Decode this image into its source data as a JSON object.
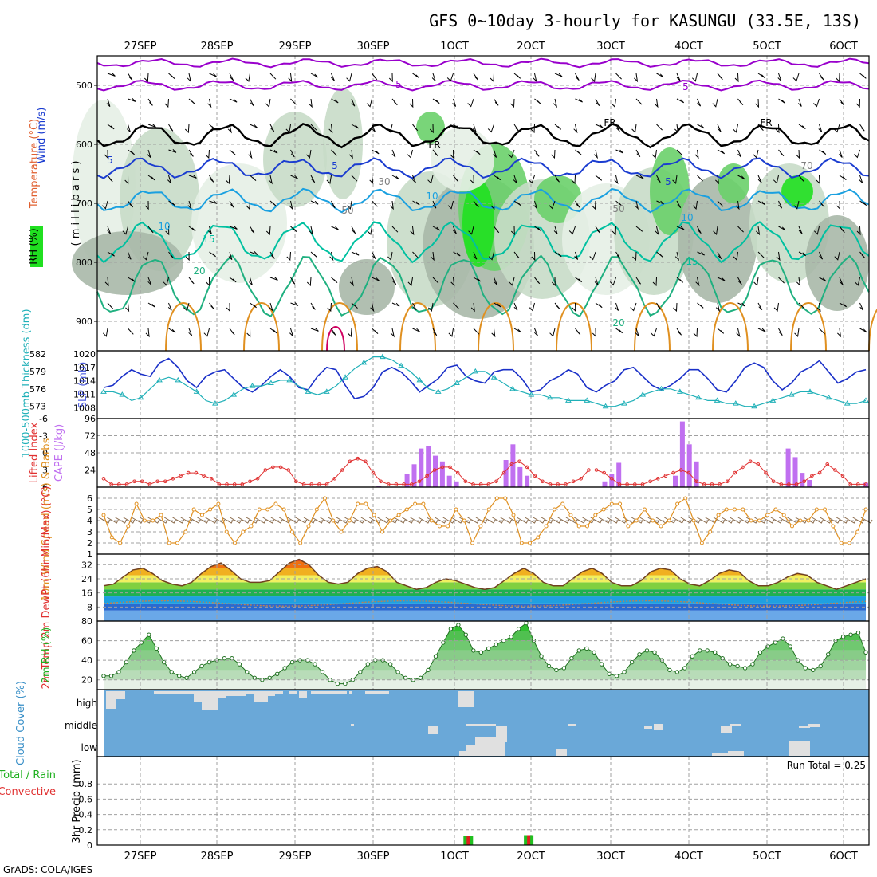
{
  "title": "GFS 0~10day 3-hourly for KASUNGU (33.5E, 13S)",
  "credit": "GrADS: COLA/IGES",
  "run_total": "Run Total = 0.25",
  "colors": {
    "rh_dark": "#a8b8a8",
    "rh_mid": "#c8dcc8",
    "rh_light": "#e6f0e6",
    "rh_green": "#6ad06a",
    "rh_bright": "#20e020",
    "temp_purple": "#9900cc",
    "temp_blue": "#1a3cd0",
    "temp_lightblue": "#1aa0e0",
    "temp_teal": "#00c0a0",
    "temp_green": "#20b080",
    "temp_orange": "#e09020",
    "temp_red": "#d00060",
    "slp": "#1a30c8",
    "thickness": "#20b0b8",
    "lifted": "#e03030",
    "cape": "#c070f0",
    "wind10m": "#e09020",
    "cloud": "#6aa8d8",
    "cloud_fill": "#e0e0e0",
    "precip_total": "#20c020",
    "precip_conv": "#e02020"
  },
  "chart_data": [
    {
      "type": "heatmap",
      "panel": "upper-air",
      "ylabel": "( m i l l i b a r s )",
      "side_labels": [
        "Wind (m/s)",
        "Temperature (°C)",
        "RH (%)"
      ],
      "y_ticks": [
        "500",
        "600",
        "700",
        "800",
        "900"
      ],
      "ylim": [
        450,
        950
      ],
      "x_dates_top": [
        "27SEP",
        "28SEP",
        "29SEP",
        "30SEP",
        "1OCT",
        "2OCT",
        "3OCT",
        "4OCT",
        "5OCT",
        "6OCT"
      ],
      "contour_labels": [
        "5",
        "5",
        "5",
        "5",
        "5",
        "10",
        "10",
        "10",
        "15",
        "15",
        "20",
        "20",
        "FR",
        "FR",
        "FR",
        "30",
        "70",
        "50",
        "50"
      ]
    },
    {
      "type": "line",
      "panel": "slp-thickness",
      "left_label": "1000-500mb Thickness (dm)",
      "right_label": "SLP (mb)",
      "left_ticks": [
        "582",
        "579",
        "576",
        "573"
      ],
      "right_ticks": [
        "1020",
        "1017",
        "1014",
        "1011",
        "1008"
      ],
      "left_range": [
        572,
        582
      ],
      "right_range": [
        1007,
        1020
      ],
      "series": [
        {
          "name": "SLP",
          "values": [
            1012.5,
            1013,
            1015,
            1016.5,
            1015.5,
            1015,
            1018,
            1019,
            1017,
            1014,
            1012.5,
            1015,
            1016,
            1016.5,
            1014.5,
            1012.5,
            1011.5,
            1013,
            1015,
            1016.5,
            1015,
            1012.5,
            1012,
            1015,
            1017,
            1016.5,
            1013,
            1010,
            1010.5,
            1012.5,
            1016,
            1017,
            1016,
            1014,
            1011.5,
            1013,
            1014.5,
            1017,
            1017.5,
            1015,
            1014,
            1013.5,
            1016,
            1016.5,
            1016.5,
            1014.5,
            1011.5,
            1012,
            1014,
            1015,
            1016.5,
            1015.5,
            1012.5,
            1011.5,
            1013,
            1014,
            1016.5,
            1017,
            1015,
            1013,
            1012,
            1013,
            1014.5,
            1016.5,
            1016.5,
            1014.5,
            1012,
            1011.5,
            1014,
            1017,
            1018,
            1017,
            1014,
            1012,
            1013.5,
            1016,
            1017,
            1018.5,
            1016,
            1013.5,
            1014.5,
            1016,
            1016.5
          ]
        },
        {
          "name": "Thickness",
          "values": [
            575.5,
            575.5,
            575,
            574,
            574.5,
            576,
            577.5,
            578,
            577.5,
            576.5,
            575.5,
            574,
            573.5,
            574,
            575,
            576,
            576.5,
            576.5,
            577,
            577.5,
            577.5,
            576.5,
            575.5,
            575,
            575.5,
            576.5,
            578,
            579.5,
            580.5,
            581.5,
            581.5,
            581,
            580,
            579,
            577.5,
            576,
            575.5,
            576,
            577,
            578,
            579,
            579,
            578,
            577,
            576,
            575.5,
            575,
            575,
            574.5,
            574.5,
            574,
            574,
            574,
            573.5,
            573,
            573,
            573.5,
            574,
            575,
            575.5,
            576,
            576,
            575.5,
            575,
            574.5,
            574,
            574,
            573.5,
            573.5,
            573,
            573,
            573.5,
            574,
            574.5,
            575,
            575.5,
            575.5,
            575,
            574.5,
            574,
            573.5,
            573.5,
            574
          ]
        }
      ]
    },
    {
      "type": "bar",
      "panel": "cape-lifted",
      "left_label": "Lifted Index",
      "right_label": "CAPE (J/kg)",
      "left_ticks": [
        "-6",
        "-3",
        "0",
        "3",
        "6"
      ],
      "right_ticks": [
        "96",
        "72",
        "48",
        "24"
      ],
      "cape_range": [
        0,
        96
      ],
      "lifted_range": [
        -6,
        6
      ],
      "cape": [
        0,
        0,
        0,
        0,
        0,
        0,
        0,
        0,
        0,
        0,
        0,
        0,
        0,
        0,
        0,
        0,
        0,
        0,
        0,
        0,
        0,
        0,
        0,
        0,
        0,
        0,
        0,
        0,
        0,
        0,
        0,
        0,
        0,
        0,
        0,
        0,
        0,
        0,
        0,
        2,
        0,
        0,
        0,
        18,
        32,
        54,
        58,
        44,
        36,
        16,
        8,
        0,
        0,
        0,
        0,
        0,
        0,
        38,
        60,
        28,
        16,
        0,
        0,
        0,
        0,
        0,
        0,
        0,
        0,
        0,
        0,
        8,
        18,
        34,
        0,
        0,
        0,
        0,
        0,
        0,
        0,
        16,
        92,
        60,
        36,
        0,
        0,
        0,
        0,
        0,
        0,
        0,
        0,
        0,
        0,
        0,
        0,
        54,
        42,
        20,
        10,
        0,
        0,
        0,
        0,
        0,
        0,
        0,
        6
      ],
      "lifted": [
        4.5,
        5.5,
        5.5,
        5.5,
        5,
        5,
        5.5,
        5,
        5,
        4.5,
        4,
        3.5,
        3.5,
        4,
        4.5,
        5.5,
        5.5,
        5.5,
        5.5,
        5,
        4.5,
        3,
        2.5,
        2.5,
        3,
        5,
        5.5,
        5.5,
        5.5,
        5.5,
        4.5,
        3,
        1.5,
        1,
        1.5,
        3.5,
        5,
        5.5,
        5.5,
        5.5,
        5.5,
        5,
        4,
        3,
        2.5,
        2.5,
        3.5,
        5,
        5.5,
        5.5,
        5.5,
        5,
        3.5,
        2,
        1.5,
        2.5,
        4,
        5,
        5.5,
        5.5,
        5.5,
        5,
        4.5,
        3,
        3,
        3.5,
        4.5,
        5.5,
        5.5,
        5.5,
        5.5,
        5,
        4.5,
        4,
        3.5,
        3,
        3.5,
        5,
        5.5,
        5.5,
        5.5,
        5,
        3.5,
        2.5,
        1.5,
        2,
        3.5,
        5,
        5.5,
        5.5,
        5.5,
        5,
        4,
        3.5,
        2,
        3,
        4,
        5.5,
        5.5,
        5.5
      ]
    },
    {
      "type": "line",
      "panel": "wind10m",
      "left_label": "10m Wind Speed (m/s) & Barbs",
      "y_ticks": [
        "1",
        "2",
        "3",
        "4",
        "5",
        "6"
      ],
      "ylim": [
        1,
        7
      ],
      "values": [
        4.5,
        2.5,
        2,
        3.5,
        5.5,
        4,
        4,
        4.5,
        2,
        2,
        3,
        5,
        4.5,
        5,
        5.5,
        3,
        2,
        3,
        3.5,
        5,
        5,
        5.5,
        5,
        3,
        2,
        3.5,
        5,
        6,
        4,
        3,
        4,
        5.5,
        5.5,
        4.5,
        3,
        4,
        4.5,
        5,
        5.5,
        5.5,
        4,
        3.5,
        3.5,
        5,
        4,
        2,
        3.5,
        5,
        6,
        6,
        4.5,
        2,
        2,
        2.5,
        3.5,
        5,
        5.5,
        4.5,
        3.5,
        3.5,
        4.5,
        5,
        5.5,
        5.5,
        3.5,
        4,
        5,
        4,
        3.5,
        4,
        5.5,
        6,
        4,
        2,
        3,
        4.5,
        5,
        5,
        5,
        4,
        4,
        4.5,
        5,
        4.5,
        3.5,
        4,
        4,
        5,
        5,
        3.5,
        2,
        2,
        3,
        5
      ]
    },
    {
      "type": "area",
      "panel": "temp-dewpt",
      "left_label": "2m Temp 2m DewPt (6hr Min/Max) (°C)",
      "y_ticks": [
        "8",
        "16",
        "24",
        "32"
      ],
      "ylim": [
        0,
        38
      ],
      "temp": [
        20,
        21,
        25,
        29,
        30,
        27,
        23,
        21,
        20,
        22,
        27,
        31,
        33,
        29,
        24,
        22,
        22,
        23,
        28,
        33,
        35,
        32,
        26,
        22,
        21,
        22,
        27,
        30,
        31,
        28,
        22,
        20,
        18,
        19,
        22,
        24,
        23,
        21,
        19,
        18,
        19,
        23,
        27,
        30,
        27,
        22,
        20,
        20,
        24,
        28,
        30,
        27,
        22,
        20,
        20,
        23,
        28,
        30,
        29,
        24,
        21,
        20,
        23,
        27,
        29,
        28,
        23,
        20,
        20,
        22,
        25,
        27,
        26,
        22,
        20,
        18,
        20,
        22,
        24
      ]
    },
    {
      "type": "area",
      "panel": "rh2m",
      "left_label": "2m RH (%)",
      "y_ticks": [
        "20",
        "40",
        "60",
        "80"
      ],
      "ylim": [
        10,
        80
      ],
      "values": [
        24,
        24,
        28,
        38,
        50,
        58,
        66,
        52,
        38,
        28,
        24,
        22,
        28,
        34,
        38,
        40,
        42,
        42,
        36,
        28,
        22,
        20,
        22,
        26,
        32,
        38,
        40,
        40,
        36,
        28,
        20,
        16,
        16,
        20,
        28,
        36,
        40,
        40,
        36,
        28,
        22,
        20,
        22,
        30,
        44,
        58,
        72,
        76,
        66,
        50,
        48,
        52,
        56,
        60,
        64,
        72,
        78,
        60,
        44,
        34,
        30,
        32,
        42,
        50,
        52,
        48,
        36,
        26,
        24,
        28,
        38,
        46,
        50,
        48,
        40,
        30,
        28,
        32,
        44,
        50,
        50,
        48,
        42,
        36,
        34,
        32,
        36,
        48,
        54,
        58,
        62,
        54,
        40,
        32,
        30,
        34,
        46,
        60,
        64,
        66,
        68,
        48
      ]
    },
    {
      "type": "bar",
      "panel": "cloud",
      "left_label": "Cloud Cover (%)",
      "levels": [
        "high",
        "middle",
        "low"
      ]
    },
    {
      "type": "bar",
      "panel": "precip",
      "left_label": "3hr Precip (mm)",
      "legend": [
        "Total / Rain",
        "Convective"
      ],
      "y_ticks": [
        "0",
        "0.2",
        "0.4",
        "0.6",
        "0.8"
      ],
      "ylim": [
        0,
        1
      ],
      "bars": [
        {
          "x": 48,
          "total": 0.12,
          "conv": 0.12
        },
        {
          "x": 56,
          "total": 0.13,
          "conv": 0.13
        }
      ],
      "x_dates_bottom": [
        "27SEP",
        "28SEP",
        "29SEP",
        "30SEP",
        "1OCT",
        "2OCT",
        "3OCT",
        "4OCT",
        "5OCT",
        "6OCT"
      ]
    }
  ]
}
